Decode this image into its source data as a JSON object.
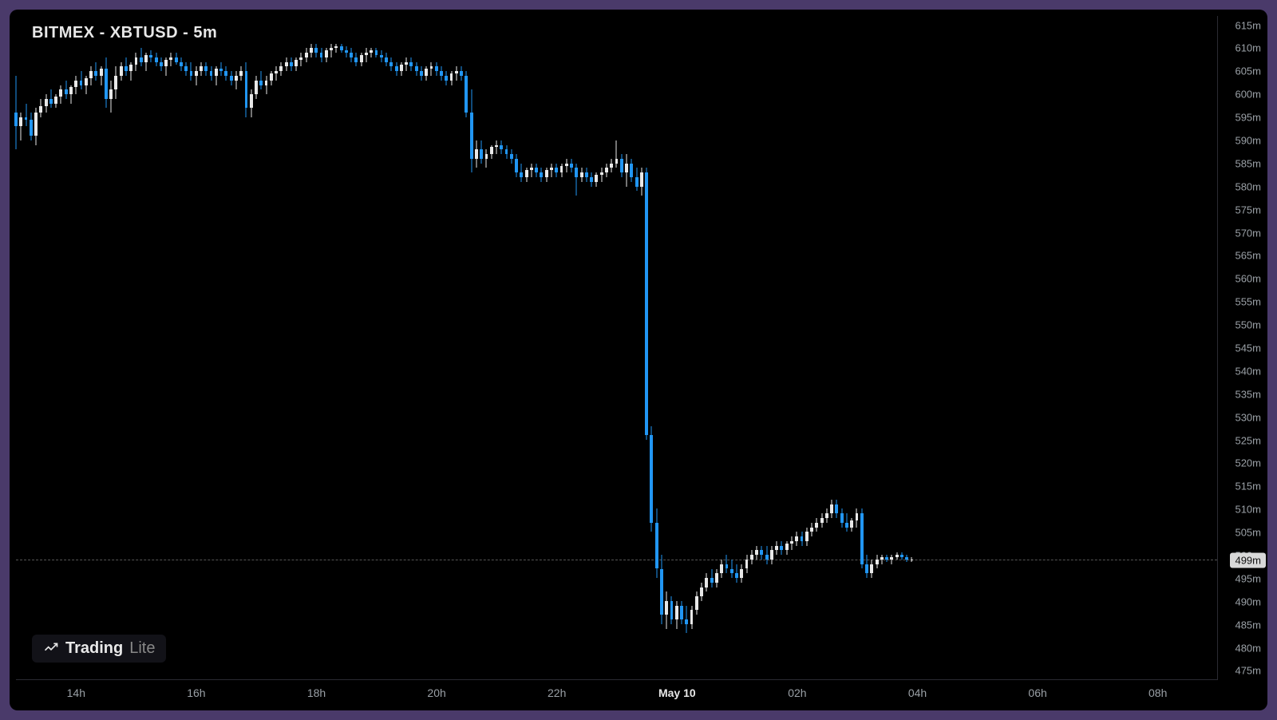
{
  "title": "BITMEX - XBTUSD - 5m",
  "watermark": {
    "part1": "Trading",
    "part2": "Lite"
  },
  "chart": {
    "type": "candlestick",
    "background_color": "#000000",
    "frame_color": "#4a3a6a",
    "axis_line_color": "#2a2a32",
    "up_color": "#e8e8e8",
    "down_color": "#2196f3",
    "title_color": "#e8e8e8",
    "title_fontsize": 20,
    "tick_color": "#9aa0a6",
    "tick_fontsize": 13,
    "price_line_color": "#555555",
    "price_tag_bg": "#d8d8d8",
    "price_tag_fg": "#111111",
    "ylim": [
      473,
      617
    ],
    "ytick_step": 5,
    "ytick_suffix": "m",
    "x_range": [
      0,
      240
    ],
    "x_ticks": [
      {
        "i": 12,
        "label": "14h"
      },
      {
        "i": 36,
        "label": "16h"
      },
      {
        "i": 60,
        "label": "18h"
      },
      {
        "i": 84,
        "label": "20h"
      },
      {
        "i": 108,
        "label": "22h"
      },
      {
        "i": 132,
        "label": "May 10",
        "major": true
      },
      {
        "i": 156,
        "label": "02h"
      },
      {
        "i": 180,
        "label": "04h"
      },
      {
        "i": 204,
        "label": "06h"
      },
      {
        "i": 228,
        "label": "08h"
      }
    ],
    "current_price": 499,
    "candle_width_ratio": 0.62,
    "candles": [
      {
        "o": 596.0,
        "h": 604.0,
        "l": 588.0,
        "c": 593.0
      },
      {
        "o": 593.0,
        "h": 596.0,
        "l": 590.0,
        "c": 595.0
      },
      {
        "o": 595.0,
        "h": 598.0,
        "l": 593.0,
        "c": 594.5
      },
      {
        "o": 594.5,
        "h": 596.0,
        "l": 590.0,
        "c": 591.0
      },
      {
        "o": 591.0,
        "h": 597.0,
        "l": 589.0,
        "c": 596.0
      },
      {
        "o": 596.0,
        "h": 599.0,
        "l": 595.0,
        "c": 597.5
      },
      {
        "o": 597.5,
        "h": 600.0,
        "l": 596.0,
        "c": 599.0
      },
      {
        "o": 599.0,
        "h": 601.0,
        "l": 597.0,
        "c": 598.0
      },
      {
        "o": 598.0,
        "h": 600.0,
        "l": 597.0,
        "c": 599.5
      },
      {
        "o": 599.5,
        "h": 602.0,
        "l": 598.0,
        "c": 601.0
      },
      {
        "o": 601.0,
        "h": 603.0,
        "l": 599.0,
        "c": 600.0
      },
      {
        "o": 600.0,
        "h": 602.0,
        "l": 598.0,
        "c": 601.5
      },
      {
        "o": 601.5,
        "h": 604.0,
        "l": 600.0,
        "c": 603.0
      },
      {
        "o": 603.0,
        "h": 605.0,
        "l": 601.0,
        "c": 602.0
      },
      {
        "o": 602.0,
        "h": 604.0,
        "l": 600.0,
        "c": 603.5
      },
      {
        "o": 603.5,
        "h": 606.0,
        "l": 602.0,
        "c": 605.0
      },
      {
        "o": 605.0,
        "h": 607.0,
        "l": 603.0,
        "c": 604.0
      },
      {
        "o": 604.0,
        "h": 606.0,
        "l": 602.0,
        "c": 605.5
      },
      {
        "o": 605.5,
        "h": 608.0,
        "l": 597.0,
        "c": 599.0
      },
      {
        "o": 599.0,
        "h": 603.0,
        "l": 596.0,
        "c": 601.0
      },
      {
        "o": 601.0,
        "h": 606.0,
        "l": 599.0,
        "c": 604.0
      },
      {
        "o": 604.0,
        "h": 607.0,
        "l": 603.0,
        "c": 606.0
      },
      {
        "o": 606.0,
        "h": 608.0,
        "l": 604.0,
        "c": 605.0
      },
      {
        "o": 605.0,
        "h": 607.0,
        "l": 603.0,
        "c": 606.5
      },
      {
        "o": 606.5,
        "h": 609.0,
        "l": 605.0,
        "c": 608.0
      },
      {
        "o": 608.0,
        "h": 610.0,
        "l": 606.0,
        "c": 607.0
      },
      {
        "o": 607.0,
        "h": 609.0,
        "l": 605.0,
        "c": 608.5
      },
      {
        "o": 608.5,
        "h": 609.5,
        "l": 607.0,
        "c": 608.0
      },
      {
        "o": 608.0,
        "h": 609.0,
        "l": 606.0,
        "c": 607.0
      },
      {
        "o": 607.0,
        "h": 608.0,
        "l": 605.0,
        "c": 606.0
      },
      {
        "o": 606.0,
        "h": 608.0,
        "l": 604.0,
        "c": 607.5
      },
      {
        "o": 607.5,
        "h": 609.0,
        "l": 606.0,
        "c": 608.0
      },
      {
        "o": 608.0,
        "h": 609.0,
        "l": 606.5,
        "c": 607.0
      },
      {
        "o": 607.0,
        "h": 608.0,
        "l": 605.0,
        "c": 606.0
      },
      {
        "o": 606.0,
        "h": 607.0,
        "l": 604.0,
        "c": 605.0
      },
      {
        "o": 605.0,
        "h": 607.0,
        "l": 603.0,
        "c": 604.0
      },
      {
        "o": 604.0,
        "h": 606.0,
        "l": 602.0,
        "c": 605.0
      },
      {
        "o": 605.0,
        "h": 607.0,
        "l": 604.0,
        "c": 606.0
      },
      {
        "o": 606.0,
        "h": 607.0,
        "l": 604.0,
        "c": 605.0
      },
      {
        "o": 605.0,
        "h": 606.0,
        "l": 603.0,
        "c": 604.0
      },
      {
        "o": 604.0,
        "h": 606.0,
        "l": 602.0,
        "c": 605.5
      },
      {
        "o": 605.5,
        "h": 607.0,
        "l": 604.0,
        "c": 605.0
      },
      {
        "o": 605.0,
        "h": 606.0,
        "l": 603.0,
        "c": 604.0
      },
      {
        "o": 604.0,
        "h": 605.0,
        "l": 602.0,
        "c": 603.0
      },
      {
        "o": 603.0,
        "h": 605.0,
        "l": 601.0,
        "c": 604.0
      },
      {
        "o": 604.0,
        "h": 606.0,
        "l": 603.0,
        "c": 605.0
      },
      {
        "o": 605.0,
        "h": 607.0,
        "l": 595.0,
        "c": 597.0
      },
      {
        "o": 597.0,
        "h": 601.0,
        "l": 595.0,
        "c": 600.0
      },
      {
        "o": 600.0,
        "h": 604.0,
        "l": 599.0,
        "c": 603.0
      },
      {
        "o": 603.0,
        "h": 605.0,
        "l": 601.0,
        "c": 602.0
      },
      {
        "o": 602.0,
        "h": 604.0,
        "l": 600.0,
        "c": 603.0
      },
      {
        "o": 603.0,
        "h": 605.0,
        "l": 602.0,
        "c": 604.5
      },
      {
        "o": 604.5,
        "h": 606.0,
        "l": 603.0,
        "c": 605.0
      },
      {
        "o": 605.0,
        "h": 607.0,
        "l": 604.0,
        "c": 606.0
      },
      {
        "o": 606.0,
        "h": 608.0,
        "l": 605.0,
        "c": 607.0
      },
      {
        "o": 607.0,
        "h": 608.0,
        "l": 605.0,
        "c": 606.0
      },
      {
        "o": 606.0,
        "h": 608.0,
        "l": 605.0,
        "c": 607.5
      },
      {
        "o": 607.5,
        "h": 609.0,
        "l": 606.0,
        "c": 608.0
      },
      {
        "o": 608.0,
        "h": 610.0,
        "l": 607.0,
        "c": 609.0
      },
      {
        "o": 609.0,
        "h": 611.0,
        "l": 608.0,
        "c": 610.0
      },
      {
        "o": 610.0,
        "h": 611.0,
        "l": 608.0,
        "c": 609.0
      },
      {
        "o": 609.0,
        "h": 610.0,
        "l": 607.0,
        "c": 608.0
      },
      {
        "o": 608.0,
        "h": 610.0,
        "l": 607.0,
        "c": 609.5
      },
      {
        "o": 609.5,
        "h": 611.0,
        "l": 608.0,
        "c": 610.0
      },
      {
        "o": 610.0,
        "h": 611.0,
        "l": 609.0,
        "c": 610.5
      },
      {
        "o": 610.5,
        "h": 611.0,
        "l": 609.0,
        "c": 609.5
      },
      {
        "o": 609.5,
        "h": 610.5,
        "l": 608.0,
        "c": 609.0
      },
      {
        "o": 609.0,
        "h": 610.0,
        "l": 607.0,
        "c": 608.0
      },
      {
        "o": 608.0,
        "h": 609.0,
        "l": 606.0,
        "c": 607.0
      },
      {
        "o": 607.0,
        "h": 609.0,
        "l": 606.0,
        "c": 608.5
      },
      {
        "o": 608.5,
        "h": 610.0,
        "l": 607.0,
        "c": 609.0
      },
      {
        "o": 609.0,
        "h": 610.0,
        "l": 608.0,
        "c": 609.5
      },
      {
        "o": 609.5,
        "h": 610.0,
        "l": 608.0,
        "c": 608.5
      },
      {
        "o": 608.5,
        "h": 609.5,
        "l": 607.0,
        "c": 608.0
      },
      {
        "o": 608.0,
        "h": 609.0,
        "l": 606.0,
        "c": 607.0
      },
      {
        "o": 607.0,
        "h": 608.0,
        "l": 605.0,
        "c": 606.0
      },
      {
        "o": 606.0,
        "h": 607.0,
        "l": 604.0,
        "c": 605.0
      },
      {
        "o": 605.0,
        "h": 607.0,
        "l": 604.0,
        "c": 606.5
      },
      {
        "o": 606.5,
        "h": 608.0,
        "l": 605.0,
        "c": 607.0
      },
      {
        "o": 607.0,
        "h": 608.0,
        "l": 605.0,
        "c": 606.0
      },
      {
        "o": 606.0,
        "h": 607.0,
        "l": 604.0,
        "c": 605.0
      },
      {
        "o": 605.0,
        "h": 606.0,
        "l": 603.0,
        "c": 604.0
      },
      {
        "o": 604.0,
        "h": 606.0,
        "l": 603.0,
        "c": 605.5
      },
      {
        "o": 605.5,
        "h": 607.0,
        "l": 604.0,
        "c": 606.0
      },
      {
        "o": 606.0,
        "h": 607.0,
        "l": 604.0,
        "c": 605.0
      },
      {
        "o": 605.0,
        "h": 606.0,
        "l": 603.0,
        "c": 604.0
      },
      {
        "o": 604.0,
        "h": 605.0,
        "l": 602.0,
        "c": 603.0
      },
      {
        "o": 603.0,
        "h": 605.0,
        "l": 602.0,
        "c": 604.5
      },
      {
        "o": 604.5,
        "h": 606.0,
        "l": 603.0,
        "c": 605.0
      },
      {
        "o": 605.0,
        "h": 606.0,
        "l": 603.0,
        "c": 604.0
      },
      {
        "o": 604.0,
        "h": 605.0,
        "l": 595.0,
        "c": 596.0
      },
      {
        "o": 596.0,
        "h": 601.0,
        "l": 583.0,
        "c": 586.0
      },
      {
        "o": 586.0,
        "h": 590.0,
        "l": 584.0,
        "c": 588.0
      },
      {
        "o": 588.0,
        "h": 590.0,
        "l": 585.0,
        "c": 586.0
      },
      {
        "o": 586.0,
        "h": 588.0,
        "l": 584.0,
        "c": 587.0
      },
      {
        "o": 587.0,
        "h": 589.0,
        "l": 586.0,
        "c": 588.5
      },
      {
        "o": 588.5,
        "h": 590.0,
        "l": 587.0,
        "c": 589.0
      },
      {
        "o": 589.0,
        "h": 590.0,
        "l": 587.0,
        "c": 588.0
      },
      {
        "o": 588.0,
        "h": 589.0,
        "l": 586.0,
        "c": 587.0
      },
      {
        "o": 587.0,
        "h": 588.0,
        "l": 585.0,
        "c": 586.0
      },
      {
        "o": 586.0,
        "h": 587.0,
        "l": 582.0,
        "c": 583.0
      },
      {
        "o": 583.0,
        "h": 585.0,
        "l": 581.0,
        "c": 582.0
      },
      {
        "o": 582.0,
        "h": 584.0,
        "l": 581.0,
        "c": 583.5
      },
      {
        "o": 583.5,
        "h": 585.0,
        "l": 582.0,
        "c": 584.0
      },
      {
        "o": 584.0,
        "h": 585.0,
        "l": 582.0,
        "c": 583.0
      },
      {
        "o": 583.0,
        "h": 584.0,
        "l": 581.0,
        "c": 582.0
      },
      {
        "o": 582.0,
        "h": 584.0,
        "l": 581.0,
        "c": 583.5
      },
      {
        "o": 583.5,
        "h": 585.0,
        "l": 582.0,
        "c": 584.0
      },
      {
        "o": 584.0,
        "h": 585.0,
        "l": 582.0,
        "c": 583.0
      },
      {
        "o": 583.0,
        "h": 585.0,
        "l": 582.0,
        "c": 584.5
      },
      {
        "o": 584.5,
        "h": 586.0,
        "l": 583.0,
        "c": 585.0
      },
      {
        "o": 585.0,
        "h": 586.0,
        "l": 583.0,
        "c": 584.0
      },
      {
        "o": 584.0,
        "h": 585.0,
        "l": 578.0,
        "c": 582.0
      },
      {
        "o": 582.0,
        "h": 584.0,
        "l": 581.0,
        "c": 583.0
      },
      {
        "o": 583.0,
        "h": 584.0,
        "l": 581.0,
        "c": 582.0
      },
      {
        "o": 582.0,
        "h": 583.0,
        "l": 580.0,
        "c": 581.0
      },
      {
        "o": 581.0,
        "h": 583.0,
        "l": 580.0,
        "c": 582.5
      },
      {
        "o": 582.5,
        "h": 584.0,
        "l": 581.0,
        "c": 583.0
      },
      {
        "o": 583.0,
        "h": 585.0,
        "l": 582.0,
        "c": 584.0
      },
      {
        "o": 584.0,
        "h": 586.0,
        "l": 583.0,
        "c": 585.0
      },
      {
        "o": 585.0,
        "h": 590.0,
        "l": 584.0,
        "c": 586.0
      },
      {
        "o": 586.0,
        "h": 587.0,
        "l": 582.0,
        "c": 583.0
      },
      {
        "o": 583.0,
        "h": 587.0,
        "l": 580.0,
        "c": 585.0
      },
      {
        "o": 585.0,
        "h": 586.0,
        "l": 581.0,
        "c": 582.0
      },
      {
        "o": 582.0,
        "h": 584.0,
        "l": 579.0,
        "c": 580.0
      },
      {
        "o": 580.0,
        "h": 584.0,
        "l": 578.0,
        "c": 583.0
      },
      {
        "o": 583.0,
        "h": 584.0,
        "l": 525.0,
        "c": 526.0
      },
      {
        "o": 526.0,
        "h": 528.0,
        "l": 505.0,
        "c": 507.0
      },
      {
        "o": 507.0,
        "h": 510.0,
        "l": 495.0,
        "c": 497.0
      },
      {
        "o": 497.0,
        "h": 500.0,
        "l": 485.0,
        "c": 487.0
      },
      {
        "o": 487.0,
        "h": 492.0,
        "l": 484.0,
        "c": 490.0
      },
      {
        "o": 490.0,
        "h": 491.0,
        "l": 485.0,
        "c": 486.0
      },
      {
        "o": 486.0,
        "h": 490.0,
        "l": 484.0,
        "c": 489.0
      },
      {
        "o": 489.0,
        "h": 490.0,
        "l": 485.0,
        "c": 486.0
      },
      {
        "o": 486.0,
        "h": 489.0,
        "l": 483.0,
        "c": 485.0
      },
      {
        "o": 485.0,
        "h": 489.0,
        "l": 484.0,
        "c": 488.0
      },
      {
        "o": 488.0,
        "h": 492.0,
        "l": 487.0,
        "c": 491.0
      },
      {
        "o": 491.0,
        "h": 494.0,
        "l": 490.0,
        "c": 493.0
      },
      {
        "o": 493.0,
        "h": 496.0,
        "l": 492.0,
        "c": 495.0
      },
      {
        "o": 495.0,
        "h": 497.0,
        "l": 493.0,
        "c": 494.0
      },
      {
        "o": 494.0,
        "h": 497.0,
        "l": 493.0,
        "c": 496.0
      },
      {
        "o": 496.0,
        "h": 499.0,
        "l": 495.0,
        "c": 498.0
      },
      {
        "o": 498.0,
        "h": 500.0,
        "l": 496.0,
        "c": 497.0
      },
      {
        "o": 497.0,
        "h": 499.0,
        "l": 495.0,
        "c": 496.0
      },
      {
        "o": 496.0,
        "h": 498.0,
        "l": 494.0,
        "c": 495.0
      },
      {
        "o": 495.0,
        "h": 498.0,
        "l": 494.0,
        "c": 497.0
      },
      {
        "o": 497.0,
        "h": 500.0,
        "l": 496.0,
        "c": 499.0
      },
      {
        "o": 499.0,
        "h": 501.0,
        "l": 498.0,
        "c": 500.0
      },
      {
        "o": 500.0,
        "h": 502.0,
        "l": 499.0,
        "c": 501.0
      },
      {
        "o": 501.0,
        "h": 502.0,
        "l": 499.0,
        "c": 500.0
      },
      {
        "o": 500.0,
        "h": 502.0,
        "l": 498.0,
        "c": 499.0
      },
      {
        "o": 499.0,
        "h": 502.0,
        "l": 498.0,
        "c": 501.0
      },
      {
        "o": 501.0,
        "h": 503.0,
        "l": 500.0,
        "c": 502.0
      },
      {
        "o": 502.0,
        "h": 503.0,
        "l": 500.0,
        "c": 501.0
      },
      {
        "o": 501.0,
        "h": 503.0,
        "l": 500.0,
        "c": 502.5
      },
      {
        "o": 502.5,
        "h": 504.0,
        "l": 501.0,
        "c": 503.0
      },
      {
        "o": 503.0,
        "h": 505.0,
        "l": 502.0,
        "c": 504.0
      },
      {
        "o": 504.0,
        "h": 505.0,
        "l": 502.0,
        "c": 503.0
      },
      {
        "o": 503.0,
        "h": 506.0,
        "l": 502.0,
        "c": 505.0
      },
      {
        "o": 505.0,
        "h": 507.0,
        "l": 504.0,
        "c": 506.0
      },
      {
        "o": 506.0,
        "h": 508.0,
        "l": 505.0,
        "c": 507.0
      },
      {
        "o": 507.0,
        "h": 509.0,
        "l": 506.0,
        "c": 508.0
      },
      {
        "o": 508.0,
        "h": 510.0,
        "l": 507.0,
        "c": 509.0
      },
      {
        "o": 509.0,
        "h": 512.0,
        "l": 508.0,
        "c": 511.0
      },
      {
        "o": 511.0,
        "h": 512.0,
        "l": 508.0,
        "c": 509.0
      },
      {
        "o": 509.0,
        "h": 510.0,
        "l": 506.0,
        "c": 507.0
      },
      {
        "o": 507.0,
        "h": 509.0,
        "l": 505.0,
        "c": 506.0
      },
      {
        "o": 506.0,
        "h": 508.0,
        "l": 505.0,
        "c": 507.5
      },
      {
        "o": 507.5,
        "h": 510.0,
        "l": 506.0,
        "c": 509.0
      },
      {
        "o": 509.0,
        "h": 510.0,
        "l": 497.0,
        "c": 498.0
      },
      {
        "o": 498.0,
        "h": 500.0,
        "l": 495.0,
        "c": 496.0
      },
      {
        "o": 496.0,
        "h": 499.0,
        "l": 495.0,
        "c": 498.0
      },
      {
        "o": 498.0,
        "h": 500.0,
        "l": 497.0,
        "c": 499.0
      },
      {
        "o": 499.0,
        "h": 500.0,
        "l": 498.0,
        "c": 499.5
      },
      {
        "o": 499.5,
        "h": 500.0,
        "l": 498.5,
        "c": 499.0
      },
      {
        "o": 499.0,
        "h": 500.0,
        "l": 498.0,
        "c": 499.5
      },
      {
        "o": 499.5,
        "h": 500.5,
        "l": 499.0,
        "c": 500.0
      },
      {
        "o": 500.0,
        "h": 500.5,
        "l": 499.0,
        "c": 499.5
      },
      {
        "o": 499.5,
        "h": 500.0,
        "l": 498.5,
        "c": 499.0
      },
      {
        "o": 499.0,
        "h": 499.5,
        "l": 498.5,
        "c": 499.0
      }
    ]
  }
}
